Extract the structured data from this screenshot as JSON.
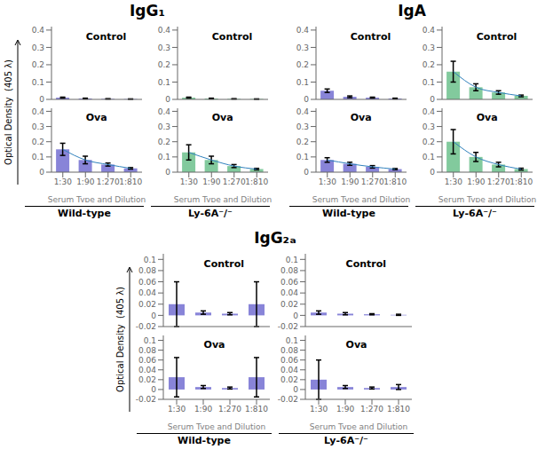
{
  "chart_data": [
    {
      "type": "bar",
      "title": "IgG₁",
      "subtitle": "Wild-type",
      "annotations": [
        "Control"
      ],
      "ylabel": "Optical Density  (405 λ)",
      "categories": [
        "1:30",
        "1:90",
        "1:270",
        "1:810"
      ],
      "values": [
        0.01,
        0.005,
        0.003,
        0.002
      ],
      "errors": [
        0.003,
        0.002,
        0.001,
        0.001
      ],
      "color": "#8884d8",
      "ylim": [
        0,
        0.42
      ],
      "yticks": [
        0,
        0.1,
        0.2,
        0.3,
        0.4
      ],
      "tick_labels": "y"
    },
    {
      "type": "bar",
      "title": "IgG₁",
      "subtitle": "Wild-type",
      "annotations": [
        "Ova"
      ],
      "xlabel": "Serum Type and Dilution",
      "categories": [
        "1:30",
        "1:90",
        "1:270",
        "1:810"
      ],
      "values": [
        0.15,
        0.08,
        0.05,
        0.025
      ],
      "errors": [
        0.04,
        0.025,
        0.01,
        0.005
      ],
      "curve": [
        0.15,
        0.08,
        0.05,
        0.025
      ],
      "color": "#8884d8",
      "ylim": [
        0,
        0.42
      ],
      "yticks": [
        0,
        0.1,
        0.2,
        0.3,
        0.4
      ]
    },
    {
      "type": "bar",
      "title": "IgG₁",
      "subtitle": "Ly-6A⁻/⁻",
      "annotations": [
        "Control"
      ],
      "categories": [
        "1:30",
        "1:90",
        "1:270",
        "1:810"
      ],
      "values": [
        0.01,
        0.005,
        0.003,
        0.002
      ],
      "errors": [
        0.003,
        0.002,
        0.001,
        0.001
      ],
      "color": "#82ca9d",
      "ylim": [
        0,
        0.42
      ],
      "yticks": [
        0,
        0.1,
        0.2,
        0.3,
        0.4
      ],
      "tick_labels": "y"
    },
    {
      "type": "bar",
      "title": "IgG₁",
      "subtitle": "Ly-6A⁻/⁻",
      "annotations": [
        "Ova"
      ],
      "xlabel": "Serum Type and Dilution",
      "categories": [
        "1:30",
        "1:90",
        "1:270",
        "1:810"
      ],
      "values": [
        0.13,
        0.08,
        0.04,
        0.02
      ],
      "errors": [
        0.05,
        0.025,
        0.01,
        0.005
      ],
      "curve": [
        0.13,
        0.08,
        0.04,
        0.02
      ],
      "color": "#82ca9d",
      "ylim": [
        0,
        0.42
      ],
      "yticks": [
        0,
        0.1,
        0.2,
        0.3,
        0.4
      ]
    },
    {
      "type": "bar",
      "title": "IgA",
      "subtitle": "Wild-type",
      "annotations": [
        "Control"
      ],
      "categories": [
        "1:30",
        "1:90",
        "1:270",
        "1:810"
      ],
      "values": [
        0.05,
        0.015,
        0.01,
        0.005
      ],
      "errors": [
        0.01,
        0.005,
        0.003,
        0.002
      ],
      "color": "#8884d8",
      "ylim": [
        0,
        0.42
      ],
      "yticks": [
        0,
        0.1,
        0.2,
        0.3,
        0.4
      ],
      "tick_labels": "y"
    },
    {
      "type": "bar",
      "title": "IgA",
      "subtitle": "Wild-type",
      "annotations": [
        "Ova"
      ],
      "xlabel": "Serum Type and Dilution",
      "categories": [
        "1:30",
        "1:90",
        "1:270",
        "1:810"
      ],
      "values": [
        0.08,
        0.055,
        0.035,
        0.02
      ],
      "errors": [
        0.015,
        0.01,
        0.008,
        0.004
      ],
      "curve": [
        0.08,
        0.055,
        0.035,
        0.02
      ],
      "color": "#8884d8",
      "ylim": [
        0,
        0.42
      ],
      "yticks": [
        0,
        0.1,
        0.2,
        0.3,
        0.4
      ]
    },
    {
      "type": "bar",
      "title": "IgA",
      "subtitle": "Ly-6A⁻/⁻",
      "annotations": [
        "Control"
      ],
      "categories": [
        "1:30",
        "1:90",
        "1:270",
        "1:810"
      ],
      "values": [
        0.16,
        0.07,
        0.04,
        0.02
      ],
      "errors": [
        0.06,
        0.02,
        0.01,
        0.005
      ],
      "curve": [
        0.16,
        0.07,
        0.04,
        0.02
      ],
      "color": "#82ca9d",
      "ylim": [
        0,
        0.42
      ],
      "yticks": [
        0,
        0.1,
        0.2,
        0.3,
        0.4
      ],
      "tick_labels": "y"
    },
    {
      "type": "bar",
      "title": "IgA",
      "subtitle": "Ly-6A⁻/⁻",
      "annotations": [
        "Ova"
      ],
      "xlabel": "Serum Type and Dilution",
      "categories": [
        "1:30",
        "1:90",
        "1:270",
        "1:810"
      ],
      "values": [
        0.2,
        0.1,
        0.05,
        0.02
      ],
      "errors": [
        0.08,
        0.03,
        0.015,
        0.006
      ],
      "curve": [
        0.2,
        0.1,
        0.05,
        0.02
      ],
      "color": "#82ca9d",
      "ylim": [
        0,
        0.42
      ],
      "yticks": [
        0,
        0.1,
        0.2,
        0.3,
        0.4
      ]
    },
    {
      "type": "bar",
      "title": "IgG₂ₐ",
      "subtitle": "Wild-type",
      "annotations": [
        "Control"
      ],
      "ylabel": "Optical Density  (405 λ)",
      "categories": [
        "1:30",
        "1:90",
        "1:270",
        "1:810"
      ],
      "values": [
        0.02,
        0.005,
        0.003,
        0.02
      ],
      "errors": [
        0.04,
        0.003,
        0.002,
        0.04
      ],
      "color": "#8884d8",
      "ylim": [
        -0.02,
        0.11
      ],
      "yticks": [
        -0.02,
        0,
        0.02,
        0.04,
        0.06,
        0.08,
        0.1
      ],
      "tick_labels": "y"
    },
    {
      "type": "bar",
      "title": "IgG₂ₐ",
      "subtitle": "Wild-type",
      "annotations": [
        "Ova"
      ],
      "xlabel": "Serum Type and Dilution",
      "categories": [
        "1:30",
        "1:90",
        "1:270",
        "1:810"
      ],
      "values": [
        0.025,
        0.005,
        0.003,
        0.025
      ],
      "errors": [
        0.04,
        0.003,
        0.002,
        0.04
      ],
      "color": "#8884d8",
      "ylim": [
        -0.02,
        0.11
      ],
      "yticks": [
        -0.02,
        0,
        0.02,
        0.04,
        0.06,
        0.08,
        0.1
      ]
    },
    {
      "type": "bar",
      "title": "IgG₂ₐ",
      "subtitle": "Ly-6A⁻/⁻",
      "annotations": [
        "Control"
      ],
      "categories": [
        "1:30",
        "1:90",
        "1:270",
        "1:810"
      ],
      "values": [
        0.005,
        0.003,
        0.002,
        0.001
      ],
      "errors": [
        0.003,
        0.002,
        0.001,
        0.001
      ],
      "color": "#8884d8",
      "ylim": [
        -0.02,
        0.11
      ],
      "yticks": [
        -0.02,
        0,
        0.02,
        0.04,
        0.06,
        0.08,
        0.1
      ],
      "tick_labels": "y"
    },
    {
      "type": "bar",
      "title": "IgG₂ₐ",
      "subtitle": "Ly-6A⁻/⁻",
      "annotations": [
        "Ova"
      ],
      "xlabel": "Serum Type and Dilution",
      "categories": [
        "1:30",
        "1:90",
        "1:270",
        "1:810"
      ],
      "values": [
        0.02,
        0.005,
        0.003,
        0.005
      ],
      "errors": [
        0.04,
        0.003,
        0.002,
        0.005
      ],
      "color": "#8884d8",
      "ylim": [
        -0.02,
        0.11
      ],
      "yticks": [
        -0.02,
        0,
        0.02,
        0.04,
        0.06,
        0.08,
        0.1
      ]
    }
  ]
}
